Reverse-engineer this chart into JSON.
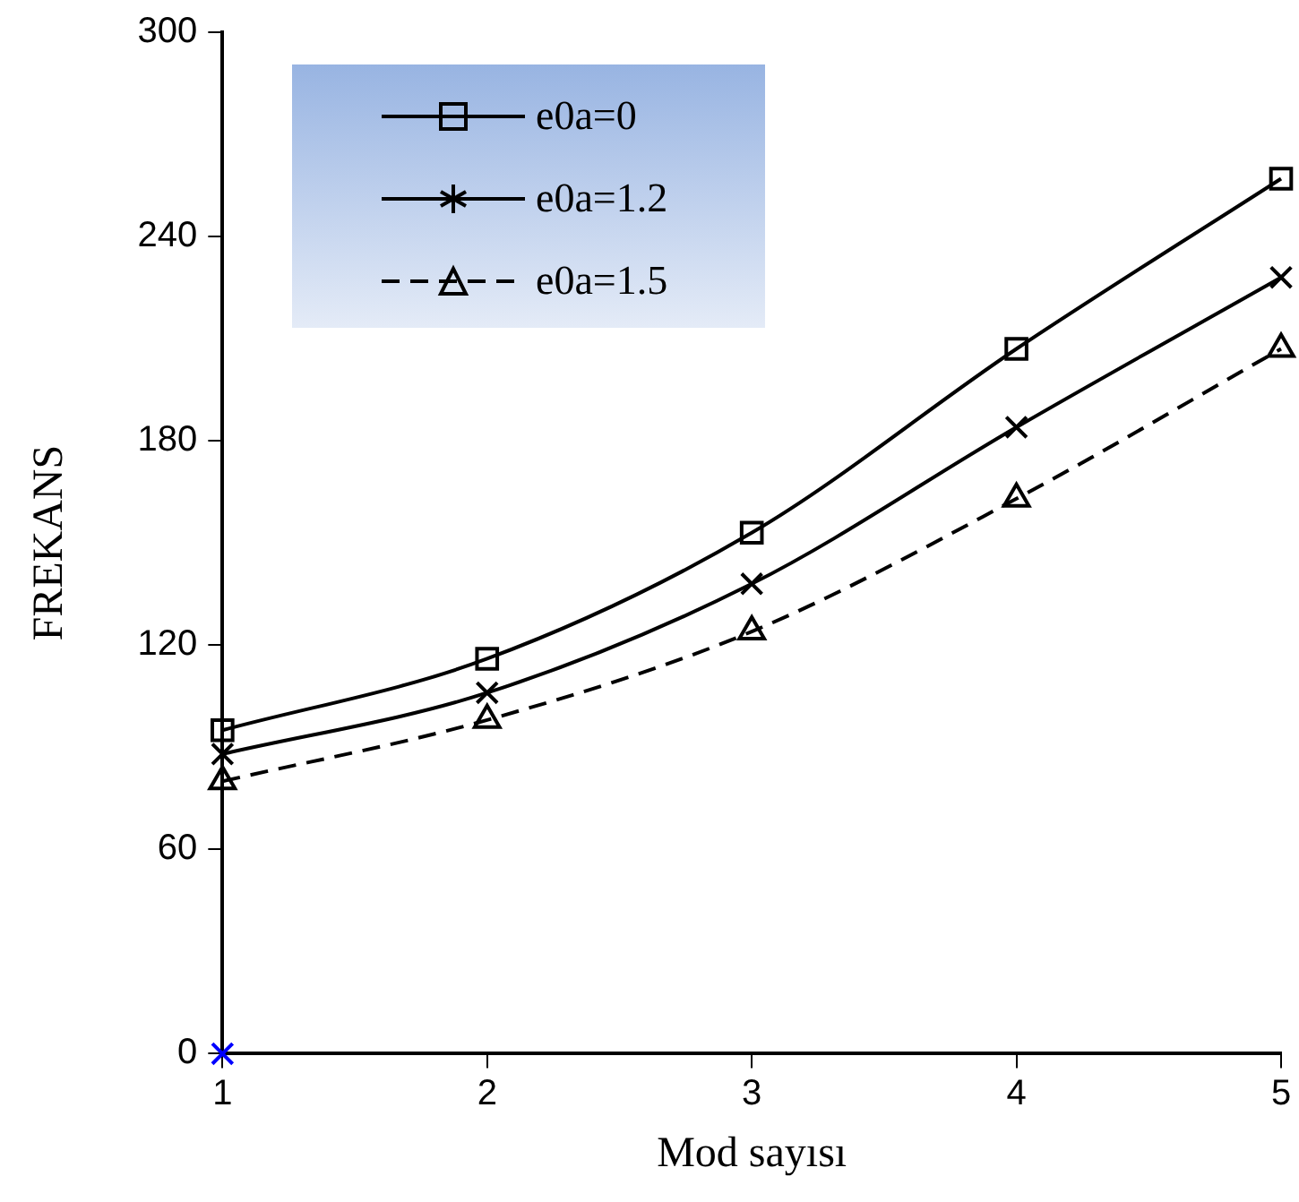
{
  "chart_data": {
    "type": "line",
    "xlabel": "Mod sayısı",
    "ylabel": "FREKANS",
    "x": [
      1,
      2,
      3,
      4,
      5
    ],
    "xlim": [
      1,
      5
    ],
    "xticks": [
      1,
      2,
      3,
      4,
      5
    ],
    "ylim": [
      0,
      300
    ],
    "yticks": [
      0,
      60,
      120,
      180,
      240,
      300
    ],
    "grid": false,
    "legend": "top left",
    "series": [
      {
        "name": "e0a=0",
        "color": "#000000",
        "marker": "square",
        "line_style": "solid",
        "values": [
          95,
          116,
          153,
          207,
          257
        ]
      },
      {
        "name": "e0a=1.2",
        "color": "#000000",
        "marker": "cross",
        "line_style": "solid",
        "values": [
          88,
          106,
          138,
          184,
          228
        ]
      },
      {
        "name": "e0a=1.5",
        "color": "#000000",
        "marker": "triangle",
        "line_style": "dashed",
        "values": [
          80,
          98,
          124,
          163,
          207
        ]
      },
      {
        "type": "scatter",
        "color": "#0000ff",
        "marker": "cross",
        "x": [
          1
        ],
        "values": [
          0
        ]
      }
    ]
  }
}
